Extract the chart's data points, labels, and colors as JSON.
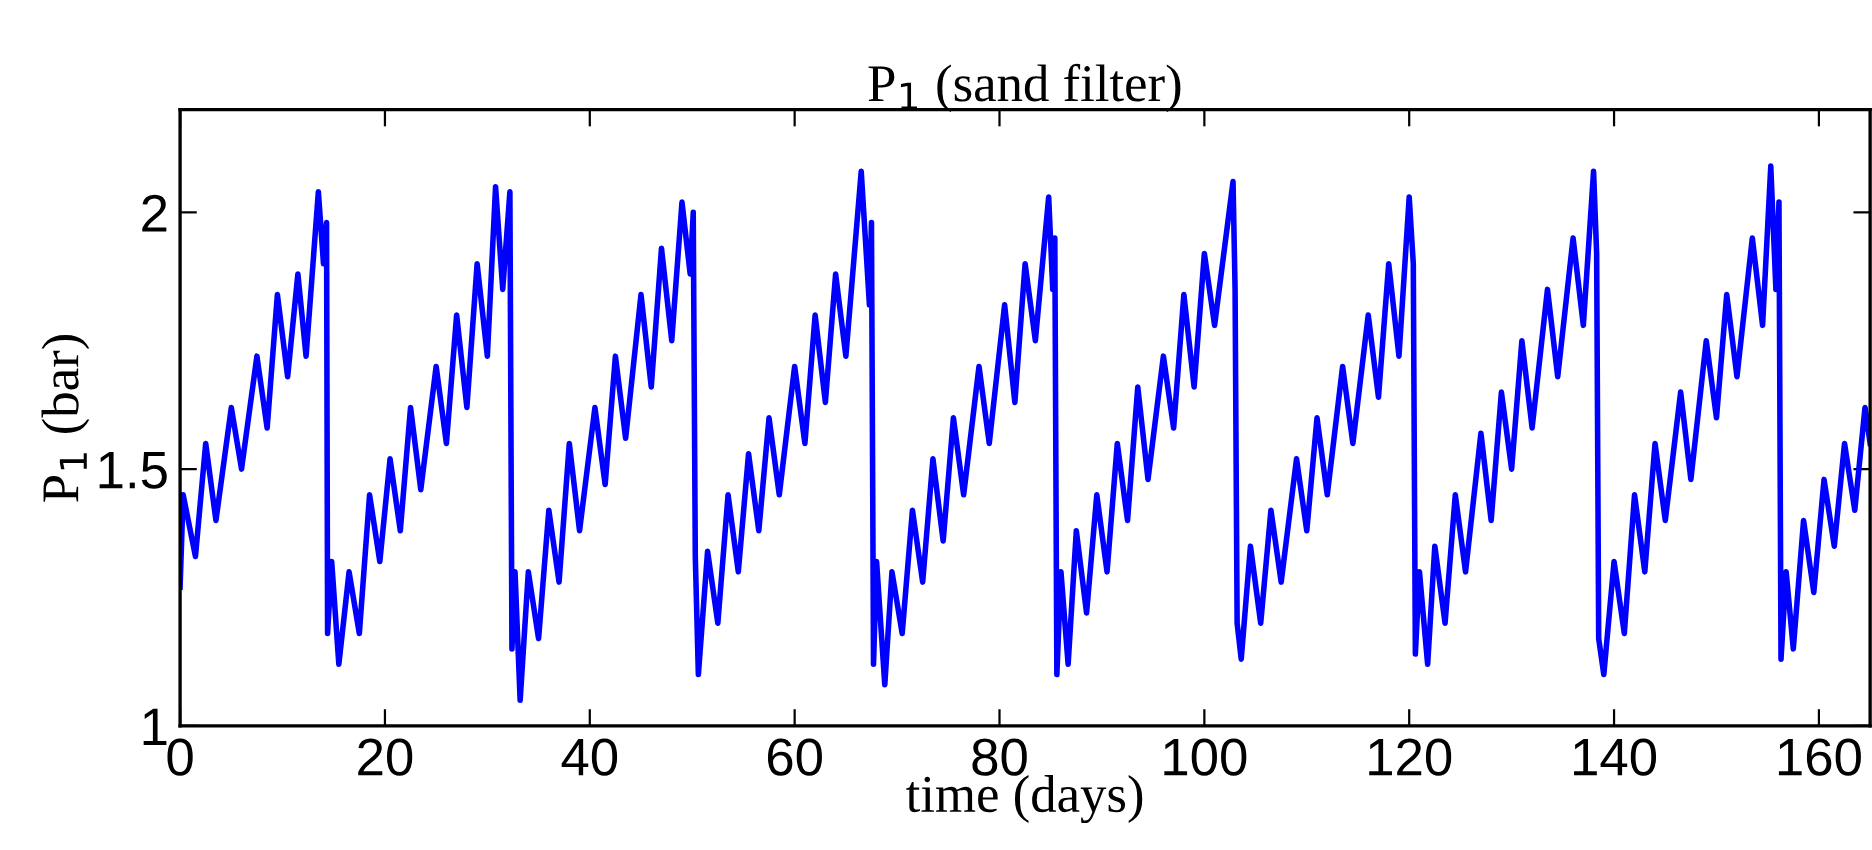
{
  "chart_data": {
    "type": "line",
    "title": "P$_{1}$ (sand filter)",
    "xlabel": "time (days)",
    "ylabel": "P$_{1}$ (bar)",
    "xlim": [
      0,
      165
    ],
    "xticks": [
      0,
      20,
      40,
      60,
      80,
      100,
      120,
      140,
      160
    ],
    "ylim": [
      1,
      2.2
    ],
    "yticks": [
      1,
      1.5,
      2
    ],
    "grid": false,
    "legend": false,
    "series": [
      {
        "color": "#0000ff",
        "x": [
          0,
          0.3,
          1.5,
          2.5,
          3.5,
          5,
          6,
          7.5,
          8.5,
          9.5,
          10.5,
          11.5,
          12.3,
          13.5,
          14.0,
          14.3,
          14.4,
          14.8,
          15.5,
          16.5,
          17.5,
          18.5,
          19.5,
          20.5,
          21.5,
          22.5,
          23.5,
          25,
          26,
          27,
          28,
          29,
          30,
          30.8,
          31.5,
          32.2,
          32.4,
          32.7,
          33.2,
          34,
          35,
          36,
          37,
          38,
          39,
          40.5,
          41.5,
          42.5,
          43.5,
          45,
          46,
          47,
          48,
          49,
          49.8,
          50.1,
          50.3,
          50.6,
          51.5,
          52.5,
          53.5,
          54.5,
          55.5,
          56.5,
          57.5,
          58.5,
          60,
          61,
          62,
          63,
          64,
          65,
          66.5,
          67.3,
          67.5,
          67.7,
          68,
          68.8,
          69.5,
          70.5,
          71.5,
          72.5,
          73.5,
          74.5,
          75.5,
          76.5,
          78,
          79,
          80.5,
          81.5,
          82.5,
          83.5,
          84.8,
          85.2,
          85.4,
          85.6,
          86,
          86.7,
          87.5,
          88.5,
          89.5,
          90.5,
          91.5,
          92.5,
          93.5,
          94.5,
          96,
          97,
          98,
          99,
          100,
          101,
          102.8,
          103,
          103.2,
          103.6,
          104.5,
          105.5,
          106.5,
          107.5,
          109,
          110,
          111,
          112,
          113.5,
          114.5,
          116,
          117,
          118,
          119,
          120,
          120.4,
          120.6,
          121,
          121.8,
          122.5,
          123.5,
          124.5,
          125.5,
          127,
          128,
          129,
          130,
          131,
          132,
          133.5,
          134.5,
          136,
          137,
          138,
          138.3,
          138.5,
          139,
          140,
          141,
          142,
          143,
          144,
          145,
          146.5,
          147.5,
          149,
          150,
          151,
          152,
          153.5,
          154.5,
          155.3,
          155.8,
          156.1,
          156.3,
          156.8,
          157.5,
          158.5,
          159.5,
          160.5,
          161.5,
          162.5,
          163.5,
          164.5,
          165
        ],
        "values": [
          1.27,
          1.45,
          1.33,
          1.55,
          1.4,
          1.62,
          1.5,
          1.72,
          1.58,
          1.84,
          1.68,
          1.88,
          1.72,
          2.04,
          1.9,
          1.98,
          1.18,
          1.32,
          1.12,
          1.3,
          1.18,
          1.45,
          1.32,
          1.52,
          1.38,
          1.62,
          1.46,
          1.7,
          1.55,
          1.8,
          1.62,
          1.9,
          1.72,
          2.05,
          1.85,
          2.04,
          1.15,
          1.3,
          1.05,
          1.3,
          1.17,
          1.42,
          1.28,
          1.55,
          1.38,
          1.62,
          1.47,
          1.72,
          1.56,
          1.84,
          1.66,
          1.93,
          1.75,
          2.02,
          1.88,
          2.0,
          1.33,
          1.1,
          1.34,
          1.2,
          1.45,
          1.3,
          1.53,
          1.38,
          1.6,
          1.45,
          1.7,
          1.55,
          1.8,
          1.63,
          1.88,
          1.72,
          2.08,
          1.82,
          1.98,
          1.12,
          1.32,
          1.08,
          1.3,
          1.18,
          1.42,
          1.28,
          1.52,
          1.36,
          1.6,
          1.45,
          1.7,
          1.55,
          1.82,
          1.63,
          1.9,
          1.75,
          2.03,
          1.85,
          1.95,
          1.1,
          1.3,
          1.12,
          1.38,
          1.22,
          1.45,
          1.3,
          1.55,
          1.4,
          1.66,
          1.48,
          1.72,
          1.58,
          1.84,
          1.66,
          1.92,
          1.78,
          2.06,
          1.85,
          1.2,
          1.13,
          1.35,
          1.2,
          1.42,
          1.28,
          1.52,
          1.38,
          1.6,
          1.45,
          1.7,
          1.55,
          1.8,
          1.64,
          1.9,
          1.72,
          2.03,
          1.9,
          1.14,
          1.3,
          1.12,
          1.35,
          1.2,
          1.45,
          1.3,
          1.57,
          1.4,
          1.65,
          1.5,
          1.75,
          1.58,
          1.85,
          1.68,
          1.95,
          1.78,
          2.08,
          1.92,
          1.17,
          1.1,
          1.32,
          1.18,
          1.45,
          1.3,
          1.55,
          1.4,
          1.65,
          1.48,
          1.75,
          1.6,
          1.84,
          1.68,
          1.95,
          1.78,
          2.09,
          1.85,
          2.02,
          1.13,
          1.3,
          1.15,
          1.4,
          1.26,
          1.48,
          1.35,
          1.55,
          1.42,
          1.62,
          1.55
        ]
      }
    ]
  }
}
